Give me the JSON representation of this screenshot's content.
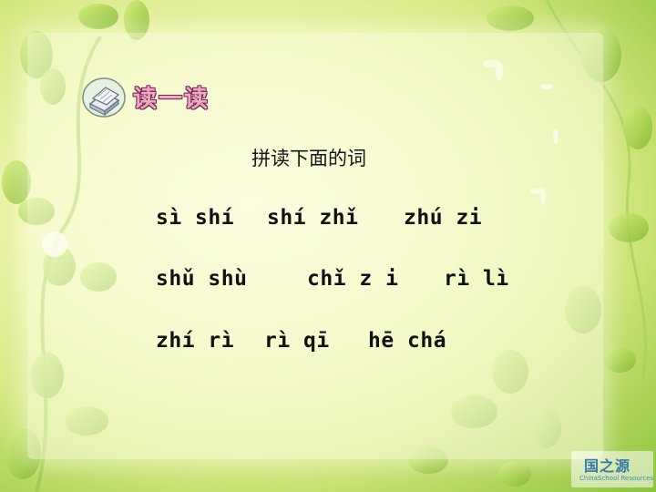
{
  "header": {
    "title": "读一读"
  },
  "subtitle": "拼读下面的词",
  "rows": [
    [
      "sì shí",
      "shí zhǐ",
      "zhú zi"
    ],
    [
      "shǔ shù",
      "chǐ z i",
      "rì lì"
    ],
    [
      "zhí rì",
      "rì qī",
      "hē chá"
    ]
  ],
  "logo": {
    "name_cn": "国之源",
    "name_en": "ChinaSchool Resources"
  },
  "colors": {
    "background": "#d8ea86",
    "leaf_green": "#8cc43c",
    "title_pink": "#f2a7c0"
  }
}
